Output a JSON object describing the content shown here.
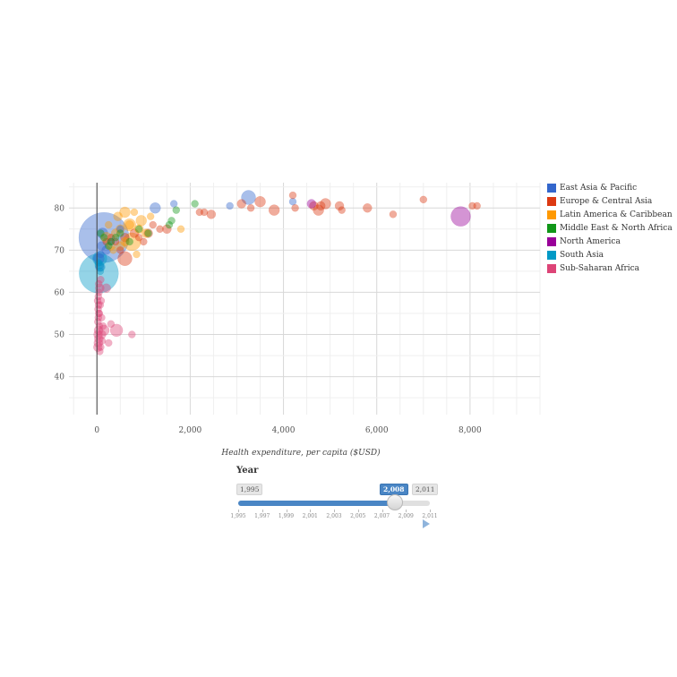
{
  "chart_data": {
    "type": "scatter",
    "title": "",
    "xlabel": "Health expenditure, per capita ($USD)",
    "ylabel": "",
    "xlim": [
      -600,
      9500
    ],
    "ylim": [
      31,
      86
    ],
    "xticks": [
      0,
      2000,
      4000,
      6000,
      8000
    ],
    "xtick_labels": [
      "0",
      "2,000",
      "4,000",
      "6,000",
      "8,000"
    ],
    "yticks": [
      40,
      50,
      60,
      70,
      80
    ],
    "ytick_labels": [
      "40",
      "50",
      "60",
      "70",
      "80"
    ],
    "grid": true,
    "legend_position": "right",
    "series": [
      {
        "name": "East Asia & Pacific",
        "color": "#3366cc",
        "points": [
          [
            150,
            73,
            28
          ],
          [
            40,
            68,
            6
          ],
          [
            100,
            71,
            5
          ],
          [
            200,
            70,
            5
          ],
          [
            300,
            72,
            4
          ],
          [
            60,
            66,
            5
          ],
          [
            120,
            74,
            6
          ],
          [
            1250,
            80,
            6
          ],
          [
            1650,
            81,
            4
          ],
          [
            2850,
            80.5,
            4
          ],
          [
            3250,
            82.5,
            8
          ],
          [
            4200,
            81.5,
            4
          ],
          [
            500,
            75,
            4
          ],
          [
            80,
            69,
            4
          ]
        ]
      },
      {
        "name": "Europe & Central Asia",
        "color": "#dc3912",
        "points": [
          [
            2200,
            79,
            4
          ],
          [
            2300,
            79,
            4
          ],
          [
            2450,
            78.5,
            5
          ],
          [
            3100,
            81,
            5
          ],
          [
            3300,
            80,
            4
          ],
          [
            3500,
            81.5,
            6
          ],
          [
            3800,
            79.5,
            6
          ],
          [
            4200,
            83,
            4
          ],
          [
            4250,
            80,
            4
          ],
          [
            4650,
            80.5,
            5
          ],
          [
            4750,
            79.5,
            6
          ],
          [
            4800,
            80.5,
            5
          ],
          [
            4900,
            81,
            6
          ],
          [
            5200,
            80.5,
            5
          ],
          [
            5250,
            79.5,
            4
          ],
          [
            5800,
            80,
            5
          ],
          [
            6350,
            78.5,
            4
          ],
          [
            7000,
            82,
            4
          ],
          [
            8050,
            80.5,
            4
          ],
          [
            8150,
            80.5,
            4
          ],
          [
            600,
            73,
            5
          ],
          [
            800,
            74,
            5
          ],
          [
            1100,
            74,
            5
          ],
          [
            1500,
            75,
            5
          ],
          [
            1350,
            75,
            4
          ],
          [
            1000,
            72,
            4
          ],
          [
            1200,
            76,
            4
          ],
          [
            400,
            72,
            4
          ],
          [
            200,
            72,
            4
          ],
          [
            300,
            73,
            4
          ],
          [
            500,
            70,
            4
          ],
          [
            900,
            73,
            4
          ],
          [
            600,
            68,
            8
          ]
        ]
      },
      {
        "name": "Latin America & Caribbean",
        "color": "#ff9900",
        "points": [
          [
            400,
            74,
            5
          ],
          [
            500,
            75,
            5
          ],
          [
            600,
            79,
            6
          ],
          [
            700,
            76,
            5
          ],
          [
            750,
            72,
            10
          ],
          [
            800,
            79,
            4
          ],
          [
            900,
            75,
            5
          ],
          [
            950,
            77,
            6
          ],
          [
            1050,
            74,
            5
          ],
          [
            1150,
            78,
            4
          ],
          [
            1800,
            75,
            4
          ],
          [
            300,
            71,
            5
          ],
          [
            250,
            76,
            4
          ],
          [
            350,
            70,
            4
          ],
          [
            600,
            72,
            5
          ],
          [
            850,
            69,
            4
          ],
          [
            700,
            76,
            7
          ],
          [
            450,
            78,
            5
          ],
          [
            200,
            73,
            6
          ],
          [
            500,
            71,
            5
          ]
        ]
      },
      {
        "name": "Middle East & North Africa",
        "color": "#109618",
        "points": [
          [
            1550,
            76,
            4
          ],
          [
            1600,
            77,
            4
          ],
          [
            1700,
            79.5,
            4
          ],
          [
            2100,
            81,
            4
          ],
          [
            400,
            73,
            4
          ],
          [
            500,
            74,
            4
          ],
          [
            300,
            72,
            4
          ],
          [
            250,
            71,
            4
          ],
          [
            150,
            73,
            4
          ],
          [
            700,
            72,
            4
          ],
          [
            900,
            75,
            4
          ],
          [
            1100,
            74,
            4
          ],
          [
            80,
            74,
            4
          ]
        ]
      },
      {
        "name": "North America",
        "color": "#990099",
        "points": [
          [
            7800,
            78,
            11
          ],
          [
            4600,
            81,
            5
          ]
        ]
      },
      {
        "name": "South Asia",
        "color": "#0099c6",
        "points": [
          [
            40,
            64.5,
            22
          ],
          [
            60,
            68,
            8
          ],
          [
            80,
            66,
            5
          ],
          [
            30,
            67,
            4
          ],
          [
            70,
            65,
            4
          ],
          [
            50,
            66.5,
            5
          ]
        ]
      },
      {
        "name": "Sub-Saharan Africa",
        "color": "#dd4477",
        "points": [
          [
            20,
            47,
            5
          ],
          [
            30,
            48,
            5
          ],
          [
            40,
            49,
            5
          ],
          [
            25,
            50,
            5
          ],
          [
            35,
            51,
            5
          ],
          [
            50,
            52,
            4
          ],
          [
            20,
            53,
            4
          ],
          [
            30,
            54,
            4
          ],
          [
            40,
            55,
            4
          ],
          [
            25,
            56,
            4
          ],
          [
            35,
            57,
            4
          ],
          [
            15,
            58,
            4
          ],
          [
            30,
            59,
            4
          ],
          [
            45,
            60,
            4
          ],
          [
            60,
            61,
            5
          ],
          [
            200,
            61,
            5
          ],
          [
            80,
            63,
            4
          ],
          [
            100,
            50,
            5
          ],
          [
            150,
            51,
            6
          ],
          [
            420,
            51,
            7
          ],
          [
            250,
            48,
            4
          ],
          [
            750,
            50,
            4
          ],
          [
            300,
            52.5,
            4
          ],
          [
            60,
            46,
            4
          ],
          [
            80,
            47,
            4
          ],
          [
            110,
            48.5,
            4
          ],
          [
            130,
            52,
            4
          ],
          [
            50,
            55,
            4
          ],
          [
            70,
            57,
            4
          ],
          [
            90,
            58,
            4
          ],
          [
            40,
            62,
            4
          ],
          [
            100,
            54,
            4
          ]
        ]
      }
    ]
  },
  "legend": {
    "items": [
      {
        "label": "East Asia & Pacific",
        "color": "#3366cc"
      },
      {
        "label": "Europe & Central Asia",
        "color": "#dc3912"
      },
      {
        "label": "Latin America & Caribbean",
        "color": "#ff9900"
      },
      {
        "label": "Middle East & North Africa",
        "color": "#109618"
      },
      {
        "label": "North America",
        "color": "#990099"
      },
      {
        "label": "South Asia",
        "color": "#0099c6"
      },
      {
        "label": "Sub-Saharan Africa",
        "color": "#dd4477"
      }
    ]
  },
  "slider": {
    "title": "Year",
    "min_label": "1,995",
    "max_label": "2,011",
    "current_label": "2,008",
    "min": 1995,
    "max": 2011,
    "value": 2008,
    "ticks": [
      "1,995",
      "1,997",
      "1,999",
      "2,001",
      "2,003",
      "2,005",
      "2,007",
      "2,009",
      "2,011"
    ],
    "play_icon": "play-icon"
  }
}
